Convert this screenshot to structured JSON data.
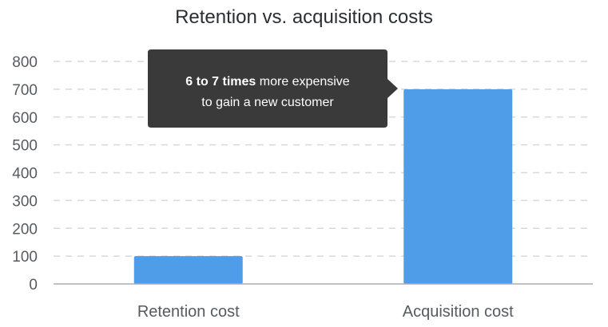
{
  "chart_data": {
    "type": "bar",
    "title": "Retention vs. acquisition costs",
    "categories": [
      "Retention cost",
      "Acquisition cost"
    ],
    "values": [
      100,
      700
    ],
    "ylim": [
      0,
      800
    ],
    "yticks": [
      0,
      100,
      200,
      300,
      400,
      500,
      600,
      700,
      800
    ],
    "grid": true,
    "bar_color": "#4f9de9",
    "annotation": {
      "bold": "6 to 7 times",
      "rest_line1": " more expensive",
      "line2": "to gain a new customer",
      "background": "#3a3a3a"
    }
  }
}
